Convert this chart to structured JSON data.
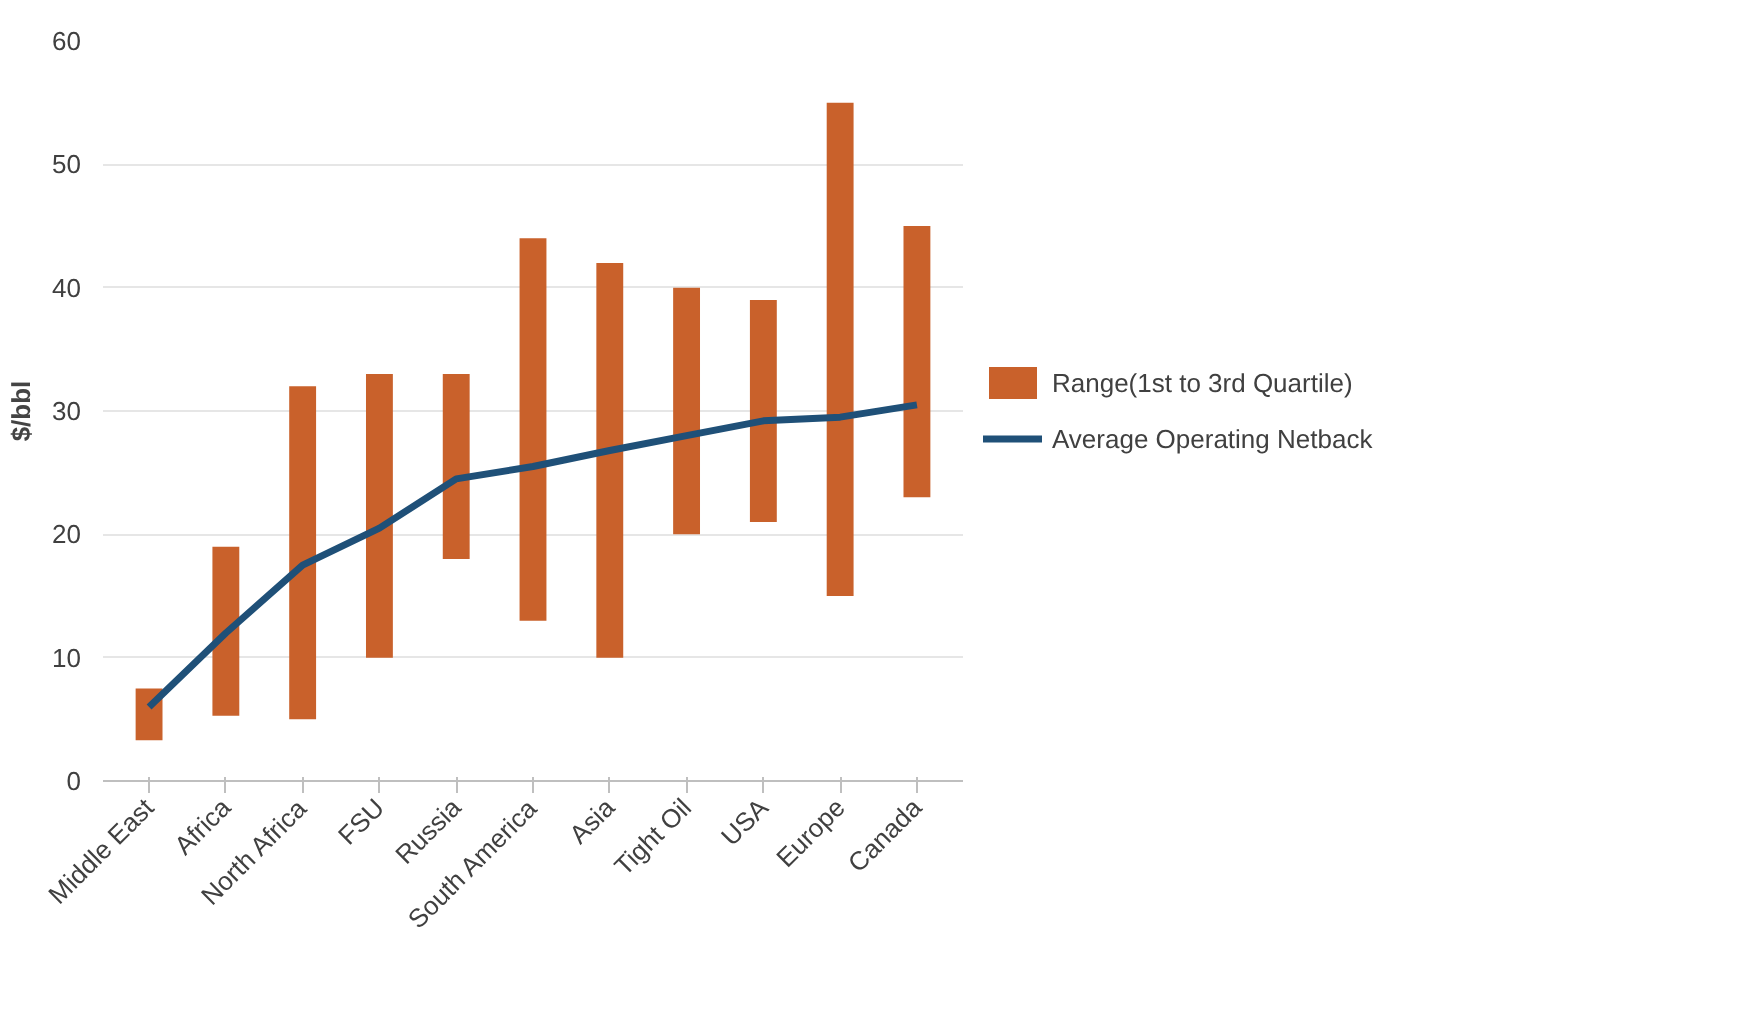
{
  "chart_data": {
    "type": "bar",
    "ylabel": "$/bbl",
    "categories": [
      "Middle East",
      "Africa",
      "North Africa",
      "FSU",
      "Russia",
      "South America",
      "Asia",
      "Tight Oil",
      "USA",
      "Europe",
      "Canada"
    ],
    "series": [
      {
        "name": "Range(1st to 3rd Quartile)",
        "color": "#c9612b",
        "base": [
          3.3,
          5.3,
          5,
          10,
          18,
          13,
          10,
          20,
          21,
          15,
          23
        ],
        "values": [
          4.2,
          13.7,
          27,
          23,
          15,
          31,
          32,
          20,
          18,
          40,
          22
        ]
      },
      {
        "name": "Average Operating Netback",
        "type": "line",
        "color": "#1f5078",
        "values": [
          6,
          12,
          17.5,
          20.5,
          24.5,
          25.5,
          26.8,
          28,
          29.2,
          29.5,
          30.5
        ]
      }
    ],
    "ylim": [
      0,
      60
    ],
    "yticks": [
      0,
      10,
      20,
      30,
      40,
      50,
      60
    ],
    "grid": "y",
    "legend": "right"
  }
}
